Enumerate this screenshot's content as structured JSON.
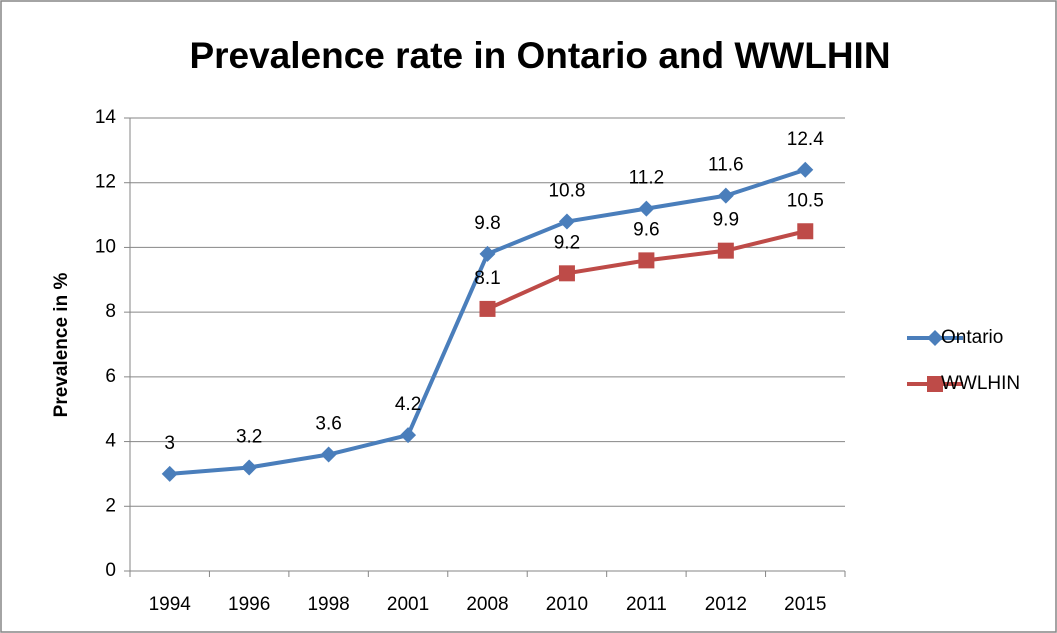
{
  "chart_data": {
    "type": "line",
    "title": "Prevalence rate in Ontario and WWLHIN",
    "y_label": "Prevalence in %",
    "categories": [
      "1994",
      "1996",
      "1998",
      "2001",
      "2008",
      "2010",
      "2011",
      "2012",
      "2015"
    ],
    "series": [
      {
        "name": "Ontario",
        "color": "#4a7ebb",
        "marker": "diamond",
        "values": [
          3,
          3.2,
          3.6,
          4.2,
          9.8,
          10.8,
          11.2,
          11.6,
          12.4
        ]
      },
      {
        "name": "WWLHIN",
        "color": "#be4b48",
        "marker": "square",
        "values": [
          null,
          null,
          null,
          null,
          8.1,
          9.2,
          9.6,
          9.9,
          10.5
        ]
      }
    ],
    "ylim": [
      0,
      14
    ],
    "yticks": [
      0,
      2,
      4,
      6,
      8,
      10,
      12,
      14
    ],
    "grid": true,
    "legend": "right"
  }
}
